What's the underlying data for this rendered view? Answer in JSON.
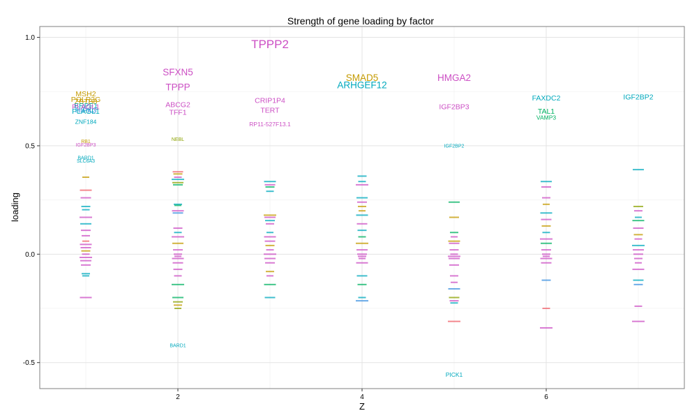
{
  "chart_data": {
    "type": "scatter",
    "title": "Strength of gene loading by factor",
    "xlabel": "Z",
    "ylabel": "loading",
    "xlim": [
      0.5,
      7.5
    ],
    "ylim": [
      -0.62,
      1.05
    ],
    "x_ticks": [
      2,
      4,
      6
    ],
    "y_ticks": [
      -0.5,
      0.0,
      0.5,
      1.0
    ],
    "x_tick_labels": [
      "2",
      "4",
      "6"
    ],
    "y_tick_labels": [
      "-0.5",
      "0.0",
      "0.5",
      "1.0"
    ],
    "grid": true,
    "legend": "none",
    "colors": {
      "orange": "#c49a00",
      "magenta": "#cc4fc4",
      "teal": "#00a9bd",
      "green": "#00b262",
      "olive": "#8ba100",
      "red": "#f0616a",
      "blue": "#3a8fe0"
    },
    "labeled_points": [
      {
        "factor": 1,
        "gene": "MSH2",
        "loading": 0.74,
        "color": "orange"
      },
      {
        "factor": 1,
        "gene": "POLR3G",
        "loading": 0.715,
        "color": "orange"
      },
      {
        "factor": 1,
        "gene": "ZBTB8",
        "loading": 0.705,
        "color": "orange"
      },
      {
        "factor": 1,
        "gene": "BRPF1",
        "loading": 0.685,
        "color": "teal"
      },
      {
        "factor": 1,
        "gene": "PLAGL1",
        "loading": 0.68,
        "color": "magenta"
      },
      {
        "factor": 1,
        "gene": "HIPK3",
        "loading": 0.665,
        "color": "blue"
      },
      {
        "factor": 1,
        "gene": "PLAGL1",
        "loading": 0.66,
        "color": "teal"
      },
      {
        "factor": 1,
        "gene": "ZNF184",
        "loading": 0.61,
        "color": "teal"
      },
      {
        "factor": 1,
        "gene": "RB1",
        "loading": 0.52,
        "color": "orange"
      },
      {
        "factor": 1,
        "gene": "IGF2BP3",
        "loading": 0.505,
        "color": "magenta"
      },
      {
        "factor": 1,
        "gene": "BARD1",
        "loading": 0.445,
        "color": "teal"
      },
      {
        "factor": 1,
        "gene": "SLC6A3",
        "loading": 0.43,
        "color": "teal"
      },
      {
        "factor": 2,
        "gene": "SFXN5",
        "loading": 0.84,
        "color": "magenta"
      },
      {
        "factor": 2,
        "gene": "TPPP",
        "loading": 0.77,
        "color": "magenta"
      },
      {
        "factor": 2,
        "gene": "ABCG2",
        "loading": 0.69,
        "color": "magenta"
      },
      {
        "factor": 2,
        "gene": "TFF1",
        "loading": 0.655,
        "color": "magenta"
      },
      {
        "factor": 2,
        "gene": "NEBL",
        "loading": 0.53,
        "color": "olive"
      },
      {
        "factor": 2,
        "gene": "BARD1",
        "loading": -0.42,
        "color": "teal"
      },
      {
        "factor": 3,
        "gene": "TPPP2",
        "loading": 0.97,
        "color": "magenta"
      },
      {
        "factor": 3,
        "gene": "CRIP1P4",
        "loading": 0.71,
        "color": "magenta"
      },
      {
        "factor": 3,
        "gene": "TERT",
        "loading": 0.665,
        "color": "magenta"
      },
      {
        "factor": 3,
        "gene": "RP11-527F13.1",
        "loading": 0.6,
        "color": "magenta"
      },
      {
        "factor": 4,
        "gene": "SMAD5",
        "loading": 0.815,
        "color": "orange"
      },
      {
        "factor": 4,
        "gene": "ARHGEF12",
        "loading": 0.78,
        "color": "teal"
      },
      {
        "factor": 5,
        "gene": "HMGA2",
        "loading": 0.815,
        "color": "magenta"
      },
      {
        "factor": 5,
        "gene": "IGF2BP3",
        "loading": 0.68,
        "color": "magenta"
      },
      {
        "factor": 5,
        "gene": "IGF2BP2",
        "loading": 0.5,
        "color": "teal"
      },
      {
        "factor": 5,
        "gene": "PICK1",
        "loading": -0.555,
        "color": "teal"
      },
      {
        "factor": 6,
        "gene": "FAXDC2",
        "loading": 0.72,
        "color": "teal"
      },
      {
        "factor": 6,
        "gene": "TAL1",
        "loading": 0.66,
        "color": "green"
      },
      {
        "factor": 6,
        "gene": "VAMP3",
        "loading": 0.63,
        "color": "green"
      },
      {
        "factor": 7,
        "gene": "IGF2BP2",
        "loading": 0.725,
        "color": "teal"
      }
    ],
    "small_points": [
      {
        "factor": 1,
        "loading": 0.355,
        "color": "orange"
      },
      {
        "factor": 1,
        "loading": 0.295,
        "color": "red"
      },
      {
        "factor": 1,
        "loading": 0.26,
        "color": "magenta"
      },
      {
        "factor": 1,
        "loading": 0.22,
        "color": "teal"
      },
      {
        "factor": 1,
        "loading": 0.205,
        "color": "teal"
      },
      {
        "factor": 1,
        "loading": 0.17,
        "color": "magenta"
      },
      {
        "factor": 1,
        "loading": 0.14,
        "color": "teal"
      },
      {
        "factor": 1,
        "loading": 0.11,
        "color": "magenta"
      },
      {
        "factor": 1,
        "loading": 0.085,
        "color": "magenta"
      },
      {
        "factor": 1,
        "loading": 0.06,
        "color": "red"
      },
      {
        "factor": 1,
        "loading": 0.045,
        "color": "magenta"
      },
      {
        "factor": 1,
        "loading": 0.03,
        "color": "magenta"
      },
      {
        "factor": 1,
        "loading": 0.015,
        "color": "orange"
      },
      {
        "factor": 1,
        "loading": 0.0,
        "color": "magenta"
      },
      {
        "factor": 1,
        "loading": -0.015,
        "color": "magenta"
      },
      {
        "factor": 1,
        "loading": -0.03,
        "color": "magenta"
      },
      {
        "factor": 1,
        "loading": -0.05,
        "color": "magenta"
      },
      {
        "factor": 1,
        "loading": -0.09,
        "color": "teal"
      },
      {
        "factor": 1,
        "loading": -0.1,
        "color": "teal"
      },
      {
        "factor": 1,
        "loading": -0.2,
        "color": "magenta"
      },
      {
        "factor": 2,
        "loading": 0.38,
        "color": "red"
      },
      {
        "factor": 2,
        "loading": 0.37,
        "color": "orange"
      },
      {
        "factor": 2,
        "loading": 0.355,
        "color": "magenta"
      },
      {
        "factor": 2,
        "loading": 0.345,
        "color": "teal"
      },
      {
        "factor": 2,
        "loading": 0.33,
        "color": "olive"
      },
      {
        "factor": 2,
        "loading": 0.32,
        "color": "green"
      },
      {
        "factor": 2,
        "loading": 0.23,
        "color": "teal"
      },
      {
        "factor": 2,
        "loading": 0.225,
        "color": "green"
      },
      {
        "factor": 2,
        "loading": 0.2,
        "color": "magenta"
      },
      {
        "factor": 2,
        "loading": 0.19,
        "color": "blue"
      },
      {
        "factor": 2,
        "loading": 0.12,
        "color": "magenta"
      },
      {
        "factor": 2,
        "loading": 0.1,
        "color": "teal"
      },
      {
        "factor": 2,
        "loading": 0.08,
        "color": "magenta"
      },
      {
        "factor": 2,
        "loading": 0.05,
        "color": "orange"
      },
      {
        "factor": 2,
        "loading": 0.02,
        "color": "magenta"
      },
      {
        "factor": 2,
        "loading": 0.0,
        "color": "magenta"
      },
      {
        "factor": 2,
        "loading": -0.01,
        "color": "magenta"
      },
      {
        "factor": 2,
        "loading": -0.02,
        "color": "magenta"
      },
      {
        "factor": 2,
        "loading": -0.04,
        "color": "magenta"
      },
      {
        "factor": 2,
        "loading": -0.07,
        "color": "magenta"
      },
      {
        "factor": 2,
        "loading": -0.1,
        "color": "magenta"
      },
      {
        "factor": 2,
        "loading": -0.14,
        "color": "green"
      },
      {
        "factor": 2,
        "loading": -0.2,
        "color": "green"
      },
      {
        "factor": 2,
        "loading": -0.22,
        "color": "olive"
      },
      {
        "factor": 2,
        "loading": -0.235,
        "color": "orange"
      },
      {
        "factor": 2,
        "loading": -0.25,
        "color": "olive"
      },
      {
        "factor": 3,
        "loading": 0.335,
        "color": "teal"
      },
      {
        "factor": 3,
        "loading": 0.32,
        "color": "magenta"
      },
      {
        "factor": 3,
        "loading": 0.31,
        "color": "green"
      },
      {
        "factor": 3,
        "loading": 0.29,
        "color": "teal"
      },
      {
        "factor": 3,
        "loading": 0.18,
        "color": "orange"
      },
      {
        "factor": 3,
        "loading": 0.17,
        "color": "magenta"
      },
      {
        "factor": 3,
        "loading": 0.155,
        "color": "teal"
      },
      {
        "factor": 3,
        "loading": 0.14,
        "color": "magenta"
      },
      {
        "factor": 3,
        "loading": 0.1,
        "color": "teal"
      },
      {
        "factor": 3,
        "loading": 0.08,
        "color": "magenta"
      },
      {
        "factor": 3,
        "loading": 0.06,
        "color": "magenta"
      },
      {
        "factor": 3,
        "loading": 0.04,
        "color": "orange"
      },
      {
        "factor": 3,
        "loading": 0.02,
        "color": "magenta"
      },
      {
        "factor": 3,
        "loading": 0.0,
        "color": "magenta"
      },
      {
        "factor": 3,
        "loading": -0.02,
        "color": "magenta"
      },
      {
        "factor": 3,
        "loading": -0.04,
        "color": "magenta"
      },
      {
        "factor": 3,
        "loading": -0.08,
        "color": "orange"
      },
      {
        "factor": 3,
        "loading": -0.1,
        "color": "magenta"
      },
      {
        "factor": 3,
        "loading": -0.14,
        "color": "green"
      },
      {
        "factor": 3,
        "loading": -0.2,
        "color": "teal"
      },
      {
        "factor": 4,
        "loading": 0.36,
        "color": "teal"
      },
      {
        "factor": 4,
        "loading": 0.335,
        "color": "teal"
      },
      {
        "factor": 4,
        "loading": 0.32,
        "color": "magenta"
      },
      {
        "factor": 4,
        "loading": 0.26,
        "color": "teal"
      },
      {
        "factor": 4,
        "loading": 0.24,
        "color": "magenta"
      },
      {
        "factor": 4,
        "loading": 0.22,
        "color": "orange"
      },
      {
        "factor": 4,
        "loading": 0.2,
        "color": "orange"
      },
      {
        "factor": 4,
        "loading": 0.18,
        "color": "teal"
      },
      {
        "factor": 4,
        "loading": 0.14,
        "color": "magenta"
      },
      {
        "factor": 4,
        "loading": 0.11,
        "color": "teal"
      },
      {
        "factor": 4,
        "loading": 0.08,
        "color": "green"
      },
      {
        "factor": 4,
        "loading": 0.05,
        "color": "orange"
      },
      {
        "factor": 4,
        "loading": 0.02,
        "color": "magenta"
      },
      {
        "factor": 4,
        "loading": 0.0,
        "color": "magenta"
      },
      {
        "factor": 4,
        "loading": -0.01,
        "color": "magenta"
      },
      {
        "factor": 4,
        "loading": -0.02,
        "color": "magenta"
      },
      {
        "factor": 4,
        "loading": -0.04,
        "color": "magenta"
      },
      {
        "factor": 4,
        "loading": -0.1,
        "color": "teal"
      },
      {
        "factor": 4,
        "loading": -0.14,
        "color": "green"
      },
      {
        "factor": 4,
        "loading": -0.2,
        "color": "teal"
      },
      {
        "factor": 4,
        "loading": -0.215,
        "color": "blue"
      },
      {
        "factor": 5,
        "loading": 0.24,
        "color": "green"
      },
      {
        "factor": 5,
        "loading": 0.17,
        "color": "orange"
      },
      {
        "factor": 5,
        "loading": 0.1,
        "color": "green"
      },
      {
        "factor": 5,
        "loading": 0.08,
        "color": "magenta"
      },
      {
        "factor": 5,
        "loading": 0.06,
        "color": "orange"
      },
      {
        "factor": 5,
        "loading": 0.05,
        "color": "magenta"
      },
      {
        "factor": 5,
        "loading": 0.02,
        "color": "magenta"
      },
      {
        "factor": 5,
        "loading": 0.0,
        "color": "magenta"
      },
      {
        "factor": 5,
        "loading": -0.01,
        "color": "magenta"
      },
      {
        "factor": 5,
        "loading": -0.02,
        "color": "magenta"
      },
      {
        "factor": 5,
        "loading": -0.05,
        "color": "magenta"
      },
      {
        "factor": 5,
        "loading": -0.1,
        "color": "magenta"
      },
      {
        "factor": 5,
        "loading": -0.13,
        "color": "magenta"
      },
      {
        "factor": 5,
        "loading": -0.16,
        "color": "blue"
      },
      {
        "factor": 5,
        "loading": -0.2,
        "color": "olive"
      },
      {
        "factor": 5,
        "loading": -0.215,
        "color": "magenta"
      },
      {
        "factor": 5,
        "loading": -0.225,
        "color": "teal"
      },
      {
        "factor": 5,
        "loading": -0.31,
        "color": "red"
      },
      {
        "factor": 6,
        "loading": 0.335,
        "color": "teal"
      },
      {
        "factor": 6,
        "loading": 0.31,
        "color": "magenta"
      },
      {
        "factor": 6,
        "loading": 0.26,
        "color": "magenta"
      },
      {
        "factor": 6,
        "loading": 0.23,
        "color": "orange"
      },
      {
        "factor": 6,
        "loading": 0.19,
        "color": "teal"
      },
      {
        "factor": 6,
        "loading": 0.16,
        "color": "magenta"
      },
      {
        "factor": 6,
        "loading": 0.13,
        "color": "orange"
      },
      {
        "factor": 6,
        "loading": 0.1,
        "color": "teal"
      },
      {
        "factor": 6,
        "loading": 0.07,
        "color": "magenta"
      },
      {
        "factor": 6,
        "loading": 0.05,
        "color": "green"
      },
      {
        "factor": 6,
        "loading": 0.02,
        "color": "magenta"
      },
      {
        "factor": 6,
        "loading": 0.0,
        "color": "magenta"
      },
      {
        "factor": 6,
        "loading": -0.01,
        "color": "magenta"
      },
      {
        "factor": 6,
        "loading": -0.02,
        "color": "magenta"
      },
      {
        "factor": 6,
        "loading": -0.04,
        "color": "magenta"
      },
      {
        "factor": 6,
        "loading": -0.12,
        "color": "blue"
      },
      {
        "factor": 6,
        "loading": -0.25,
        "color": "red"
      },
      {
        "factor": 6,
        "loading": -0.34,
        "color": "magenta"
      },
      {
        "factor": 7,
        "loading": 0.39,
        "color": "teal"
      },
      {
        "factor": 7,
        "loading": 0.22,
        "color": "olive"
      },
      {
        "factor": 7,
        "loading": 0.2,
        "color": "magenta"
      },
      {
        "factor": 7,
        "loading": 0.17,
        "color": "teal"
      },
      {
        "factor": 7,
        "loading": 0.155,
        "color": "green"
      },
      {
        "factor": 7,
        "loading": 0.12,
        "color": "magenta"
      },
      {
        "factor": 7,
        "loading": 0.09,
        "color": "orange"
      },
      {
        "factor": 7,
        "loading": 0.07,
        "color": "magenta"
      },
      {
        "factor": 7,
        "loading": 0.04,
        "color": "teal"
      },
      {
        "factor": 7,
        "loading": 0.02,
        "color": "magenta"
      },
      {
        "factor": 7,
        "loading": 0.0,
        "color": "magenta"
      },
      {
        "factor": 7,
        "loading": -0.02,
        "color": "magenta"
      },
      {
        "factor": 7,
        "loading": -0.04,
        "color": "magenta"
      },
      {
        "factor": 7,
        "loading": -0.07,
        "color": "magenta"
      },
      {
        "factor": 7,
        "loading": -0.12,
        "color": "teal"
      },
      {
        "factor": 7,
        "loading": -0.14,
        "color": "blue"
      },
      {
        "factor": 7,
        "loading": -0.24,
        "color": "magenta"
      },
      {
        "factor": 7,
        "loading": -0.31,
        "color": "magenta"
      }
    ]
  }
}
